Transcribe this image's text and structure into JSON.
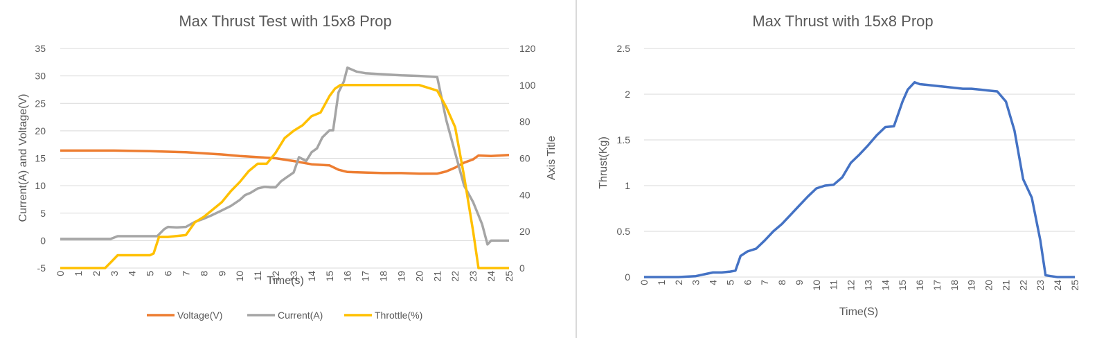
{
  "chart_data": [
    {
      "type": "line",
      "title": "Max Thrust Test with 15x8 Prop",
      "xlabel": "Time(s)",
      "ylabel": "Current(A) and Voltage(V)",
      "y2label": "Axis Title",
      "x_ticks": [
        0,
        1,
        2,
        3,
        4,
        5,
        6,
        7,
        8,
        9,
        10,
        11,
        12,
        13,
        14,
        15,
        16,
        17,
        18,
        19,
        20,
        21,
        22,
        23,
        24,
        25
      ],
      "xlim": [
        0,
        25
      ],
      "ylim": [
        -5,
        35
      ],
      "y_ticks": [
        -5,
        0,
        5,
        10,
        15,
        20,
        25,
        30,
        35
      ],
      "y2lim": [
        0,
        120
      ],
      "y2_ticks": [
        0,
        20,
        40,
        60,
        80,
        100,
        120
      ],
      "grid": true,
      "legend": "bottom",
      "series": [
        {
          "name": "Voltage(V)",
          "axis": "left",
          "color": "#ed7d31",
          "x": [
            0,
            3,
            5,
            7,
            8,
            9,
            10,
            11,
            12,
            13,
            14,
            15,
            15.5,
            16,
            17,
            18,
            19,
            20,
            21,
            21.5,
            22,
            22.5,
            23,
            23.3,
            24,
            25
          ],
          "y": [
            16.4,
            16.4,
            16.3,
            16.1,
            15.9,
            15.7,
            15.4,
            15.2,
            15.0,
            14.5,
            13.9,
            13.7,
            12.9,
            12.5,
            12.4,
            12.3,
            12.3,
            12.2,
            12.2,
            12.6,
            13.3,
            14.2,
            14.8,
            15.5,
            15.4,
            15.6
          ]
        },
        {
          "name": "Current(A)",
          "axis": "left",
          "color": "#a5a5a5",
          "x": [
            0,
            2.8,
            3.2,
            4,
            5,
            5.4,
            5.8,
            6,
            6.5,
            7,
            7.5,
            8,
            8.5,
            9,
            9.5,
            10,
            10.3,
            10.6,
            11,
            11.4,
            11.7,
            12,
            12.3,
            12.6,
            13,
            13.3,
            13.7,
            14,
            14.3,
            14.6,
            15,
            15.2,
            15.5,
            15.8,
            16,
            16.5,
            17,
            18,
            19,
            20,
            20.5,
            21,
            21.5,
            22,
            22.5,
            23,
            23.5,
            23.8,
            24,
            25
          ],
          "y": [
            0.3,
            0.3,
            0.8,
            0.8,
            0.8,
            0.8,
            2.1,
            2.5,
            2.4,
            2.5,
            3.4,
            4.0,
            4.7,
            5.5,
            6.3,
            7.4,
            8.3,
            8.7,
            9.5,
            9.8,
            9.7,
            9.7,
            10.8,
            11.5,
            12.4,
            15.2,
            14.5,
            16.1,
            16.8,
            18.8,
            20.1,
            20.1,
            27.0,
            29.0,
            31.5,
            30.8,
            30.5,
            30.3,
            30.1,
            30.0,
            29.9,
            29.8,
            22.0,
            16.0,
            10.0,
            7.0,
            3.0,
            -0.7,
            0.0,
            0.0
          ]
        },
        {
          "name": "Throttle(%)",
          "axis": "right",
          "color": "#ffc000",
          "x": [
            0,
            2.5,
            2.8,
            3.2,
            4,
            5,
            5.2,
            5.5,
            6,
            7,
            7.5,
            8,
            8.5,
            9,
            9.5,
            10,
            10.5,
            11,
            11.5,
            12,
            12.5,
            13,
            13.5,
            14,
            14.5,
            15,
            15.3,
            15.6,
            16,
            17,
            18,
            19,
            20,
            21,
            21.5,
            22,
            22.5,
            23,
            23.3,
            24,
            25
          ],
          "y": [
            0,
            0,
            3,
            7,
            7,
            7,
            8,
            17,
            17,
            18,
            25,
            28,
            32,
            36,
            42,
            47,
            53,
            57,
            57,
            63,
            71,
            75,
            78,
            83,
            85,
            94,
            98,
            100,
            100,
            100,
            100,
            100,
            100,
            97,
            88,
            77,
            50,
            20,
            0,
            0,
            0
          ]
        }
      ]
    },
    {
      "type": "line",
      "title": "Max Thrust with 15x8 Prop",
      "xlabel": "Time(S)",
      "ylabel": "Thrust(Kg)",
      "x_ticks": [
        0,
        1,
        2,
        3,
        4,
        5,
        6,
        7,
        8,
        9,
        10,
        11,
        12,
        13,
        14,
        15,
        16,
        17,
        18,
        19,
        20,
        21,
        22,
        23,
        24,
        25
      ],
      "xlim": [
        0,
        25
      ],
      "ylim": [
        0,
        2.5
      ],
      "y_ticks": [
        "0",
        "0.5",
        "1",
        "1.5",
        "2",
        "2.5"
      ],
      "grid": true,
      "series": [
        {
          "color": "#4472c4",
          "x": [
            0,
            1,
            2,
            3,
            3.5,
            4,
            4.5,
            5,
            5.3,
            5.6,
            6,
            6.5,
            7,
            7.5,
            8,
            8.5,
            9,
            9.5,
            10,
            10.5,
            11,
            11.5,
            12,
            12.5,
            13,
            13.5,
            14,
            14.5,
            15,
            15.3,
            15.7,
            16,
            16.5,
            17,
            17.5,
            18,
            18.5,
            19,
            19.5,
            20,
            20.5,
            21,
            21.5,
            22,
            22.5,
            23,
            23.3,
            23.6,
            24,
            24.5,
            25
          ],
          "y": [
            0,
            0,
            0,
            0.01,
            0.03,
            0.05,
            0.05,
            0.06,
            0.07,
            0.23,
            0.28,
            0.31,
            0.4,
            0.5,
            0.58,
            0.68,
            0.78,
            0.88,
            0.97,
            1.0,
            1.01,
            1.09,
            1.25,
            1.34,
            1.44,
            1.55,
            1.64,
            1.65,
            1.92,
            2.05,
            2.13,
            2.11,
            2.1,
            2.09,
            2.08,
            2.07,
            2.06,
            2.06,
            2.05,
            2.04,
            2.03,
            1.92,
            1.6,
            1.07,
            0.87,
            0.4,
            0.02,
            0.01,
            0.0,
            0.0,
            0.0
          ]
        }
      ]
    }
  ]
}
